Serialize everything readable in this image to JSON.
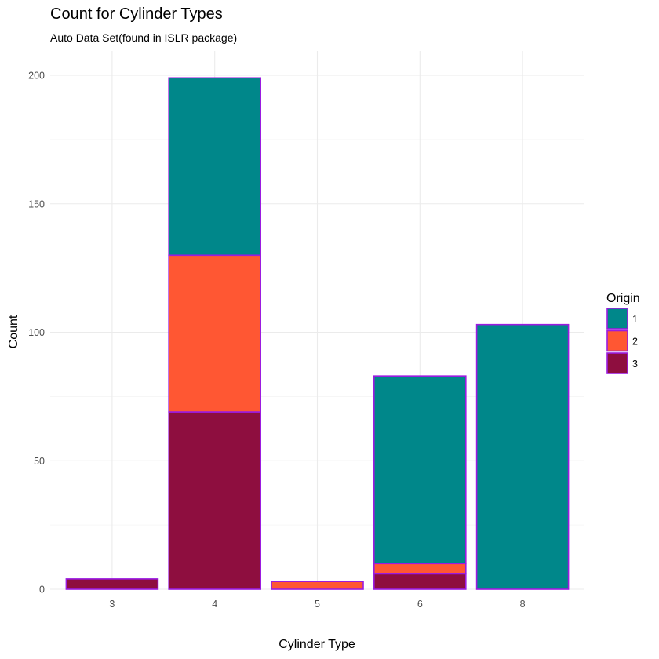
{
  "chart_data": {
    "type": "bar",
    "stacked": true,
    "title": "Count for Cylinder Types",
    "subtitle": "Auto Data Set(found in ISLR package)",
    "xlabel": "Cylinder Type",
    "ylabel": "Count",
    "categories": [
      "3",
      "4",
      "5",
      "6",
      "8"
    ],
    "ylim": [
      0,
      200
    ],
    "yticks": [
      0,
      50,
      100,
      150,
      200
    ],
    "legend": {
      "title": "Origin",
      "position": "right"
    },
    "series": [
      {
        "name": "3",
        "color": "#8E0E3F",
        "values": [
          4,
          69,
          0,
          6,
          0
        ]
      },
      {
        "name": "2",
        "color": "#FF5733",
        "values": [
          0,
          61,
          3,
          4,
          0
        ]
      },
      {
        "name": "1",
        "color": "#00878A",
        "values": [
          0,
          69,
          0,
          73,
          103
        ]
      }
    ],
    "bar_outline_color": "#9B1BE0",
    "grid": true
  }
}
